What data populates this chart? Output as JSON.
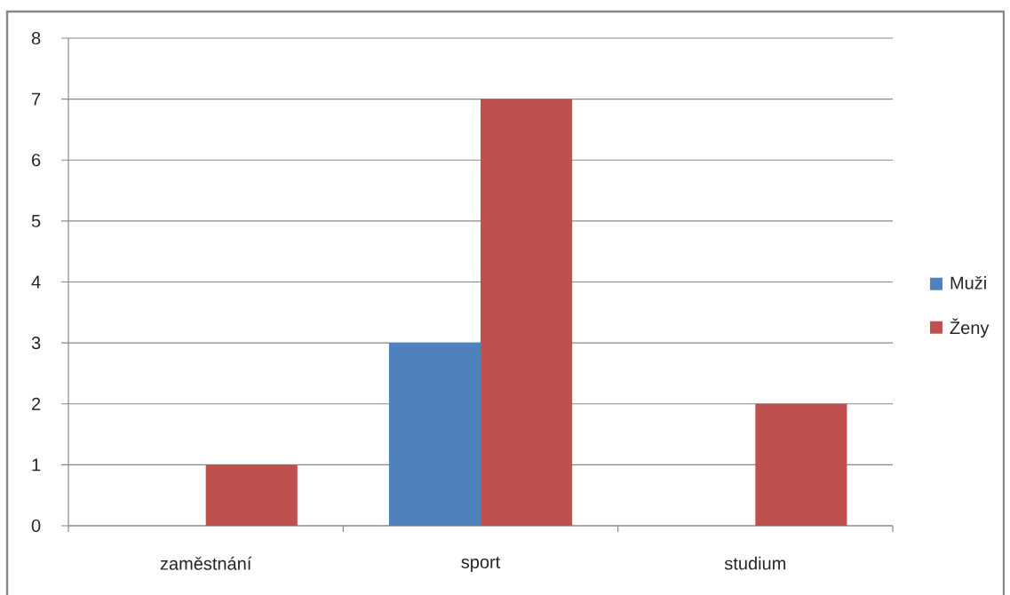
{
  "chart_data": {
    "type": "bar",
    "categories": [
      "zaměstnání",
      "sport",
      "studium"
    ],
    "series": [
      {
        "name": "Muži",
        "color": "#4f81bd",
        "values": [
          0,
          3,
          0
        ]
      },
      {
        "name": "Ženy",
        "color": "#c0504d",
        "values": [
          1,
          7,
          2
        ]
      }
    ],
    "ylim": [
      0,
      8
    ],
    "yticks": [
      0,
      1,
      2,
      3,
      4,
      5,
      6,
      7,
      8
    ],
    "grid": "y",
    "legend": "right"
  }
}
